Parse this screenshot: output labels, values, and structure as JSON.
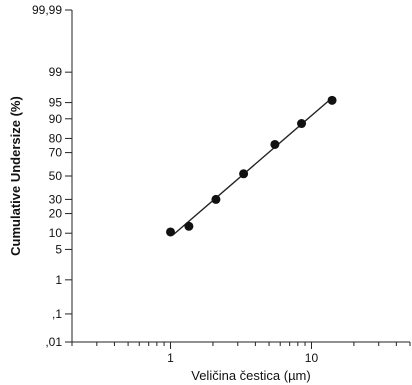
{
  "chart_data": {
    "type": "scatter",
    "title": "",
    "xlabel": "Veličina čestica (µm)",
    "ylabel": "Cumulative Undersize (%)",
    "x_scale": "log",
    "y_scale": "probability",
    "xlim": [
      0.2,
      50
    ],
    "ylim": [
      0.01,
      99.99
    ],
    "x_ticks": [
      {
        "value": 1,
        "label": "1"
      },
      {
        "value": 10,
        "label": "10"
      }
    ],
    "y_ticks": [
      {
        "value": 0.01,
        "label": ",01"
      },
      {
        "value": 0.1,
        "label": ",1"
      },
      {
        "value": 1,
        "label": "1"
      },
      {
        "value": 5,
        "label": "5"
      },
      {
        "value": 10,
        "label": "10"
      },
      {
        "value": 20,
        "label": "20"
      },
      {
        "value": 30,
        "label": "30"
      },
      {
        "value": 50,
        "label": "50"
      },
      {
        "value": 70,
        "label": "70"
      },
      {
        "value": 80,
        "label": "80"
      },
      {
        "value": 90,
        "label": "90"
      },
      {
        "value": 95,
        "label": "95"
      },
      {
        "value": 99,
        "label": "99"
      },
      {
        "value": 99.99,
        "label": "99,99"
      }
    ],
    "points": [
      {
        "x": 1.0,
        "y": 10.5
      },
      {
        "x": 1.35,
        "y": 13
      },
      {
        "x": 2.1,
        "y": 30
      },
      {
        "x": 3.3,
        "y": 52
      },
      {
        "x": 5.5,
        "y": 76
      },
      {
        "x": 8.5,
        "y": 88
      },
      {
        "x": 14,
        "y": 95.5
      }
    ],
    "fit_line": {
      "x": [
        1.05,
        14
      ],
      "y": [
        9.5,
        96
      ]
    },
    "grid": false
  }
}
